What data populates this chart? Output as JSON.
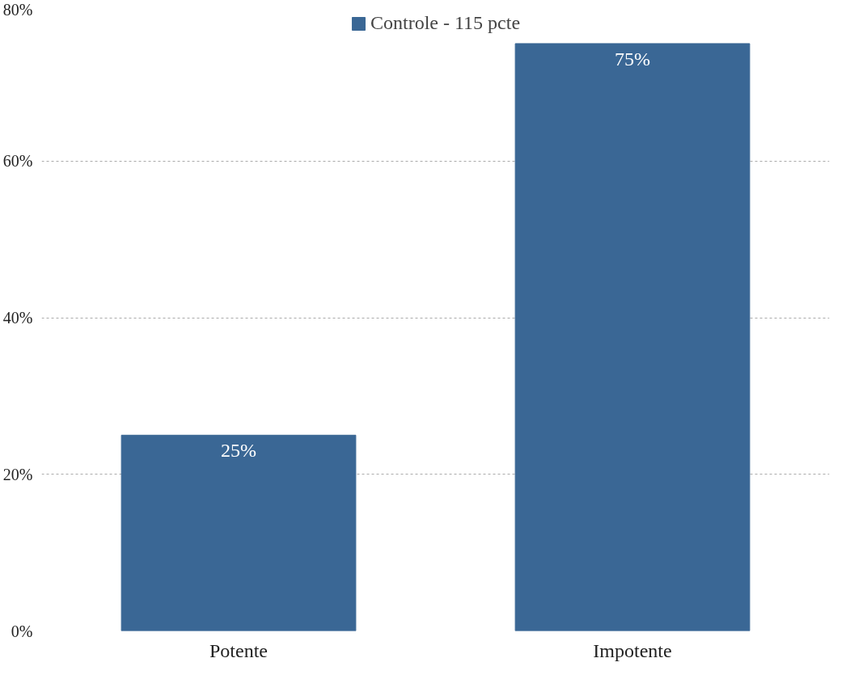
{
  "chart_data": {
    "type": "bar",
    "categories": [
      "Potente",
      "Impotente"
    ],
    "series": [
      {
        "name": "Controle - 115 pcte",
        "color": "#3a6795",
        "values": [
          25,
          75
        ],
        "value_labels": [
          "25%",
          "75%"
        ]
      }
    ],
    "ylim": [
      0,
      80
    ],
    "yticks": [
      {
        "value": 0,
        "label": "0%"
      },
      {
        "value": 20,
        "label": "20%"
      },
      {
        "value": 40,
        "label": "40%"
      },
      {
        "value": 60,
        "label": "60%"
      },
      {
        "value": 80,
        "label": "80%"
      }
    ],
    "grid": "y",
    "legend": "top"
  }
}
